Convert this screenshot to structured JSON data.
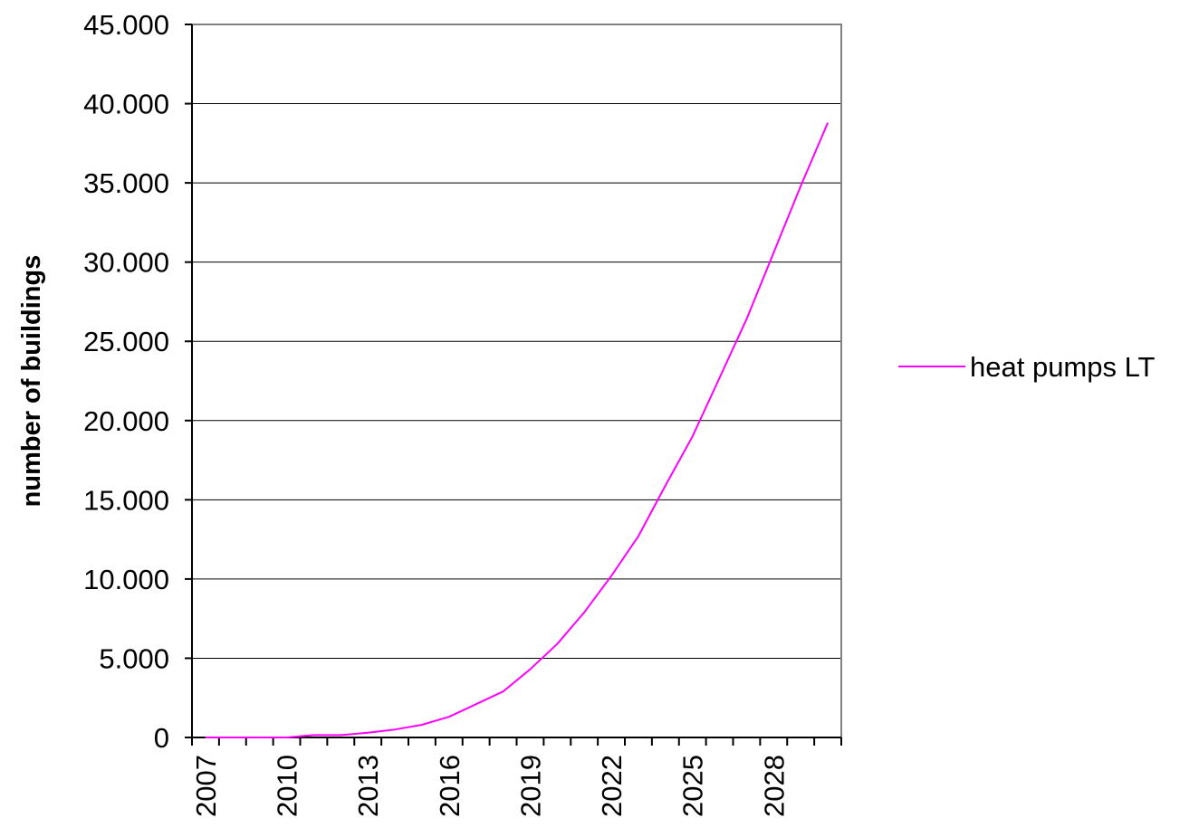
{
  "chart_data": {
    "type": "line",
    "title": "",
    "xlabel": "",
    "ylabel": "number of buildings",
    "ylim": [
      0,
      45000
    ],
    "yticks": [
      0,
      5000,
      10000,
      15000,
      20000,
      25000,
      30000,
      35000,
      40000,
      45000
    ],
    "ytick_labels": [
      "0",
      "5.000",
      "10.000",
      "15.000",
      "20.000",
      "25.000",
      "30.000",
      "35.000",
      "40.000",
      "45.000"
    ],
    "x": [
      2007,
      2008,
      2009,
      2010,
      2011,
      2012,
      2013,
      2014,
      2015,
      2016,
      2017,
      2018,
      2019,
      2020,
      2021,
      2022,
      2023,
      2024,
      2025,
      2026,
      2027,
      2028,
      2029,
      2030
    ],
    "xtick_labels": [
      "2007",
      "2010",
      "2013",
      "2016",
      "2019",
      "2022",
      "2025",
      "2028"
    ],
    "grid": true,
    "legend_position": "right",
    "series": [
      {
        "name": "heat pumps LT",
        "color": "#ff00ff",
        "values": [
          0,
          0,
          0,
          0,
          150,
          150,
          300,
          500,
          800,
          1300,
          2100,
          2900,
          4300,
          5900,
          7900,
          10200,
          12700,
          15900,
          19000,
          22700,
          26400,
          30600,
          34800,
          38800
        ]
      }
    ]
  }
}
